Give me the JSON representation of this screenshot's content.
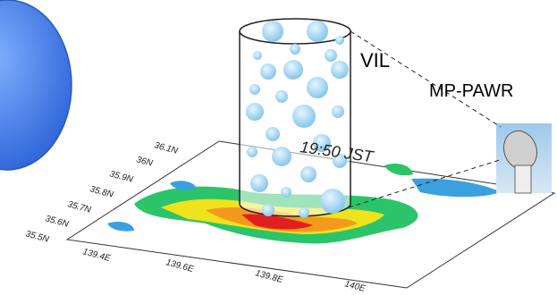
{
  "labels": {
    "vil": "VIL",
    "radar": "MP-PAWR",
    "time": "19:50 JST"
  },
  "latitude_labels": [
    "36.1N",
    "36N",
    "35.9N",
    "35.8N",
    "35.7N",
    "35.6N",
    "35.5N"
  ],
  "longitude_labels": [
    "139.4E",
    "139.6E",
    "139.8E",
    "140E"
  ]
}
